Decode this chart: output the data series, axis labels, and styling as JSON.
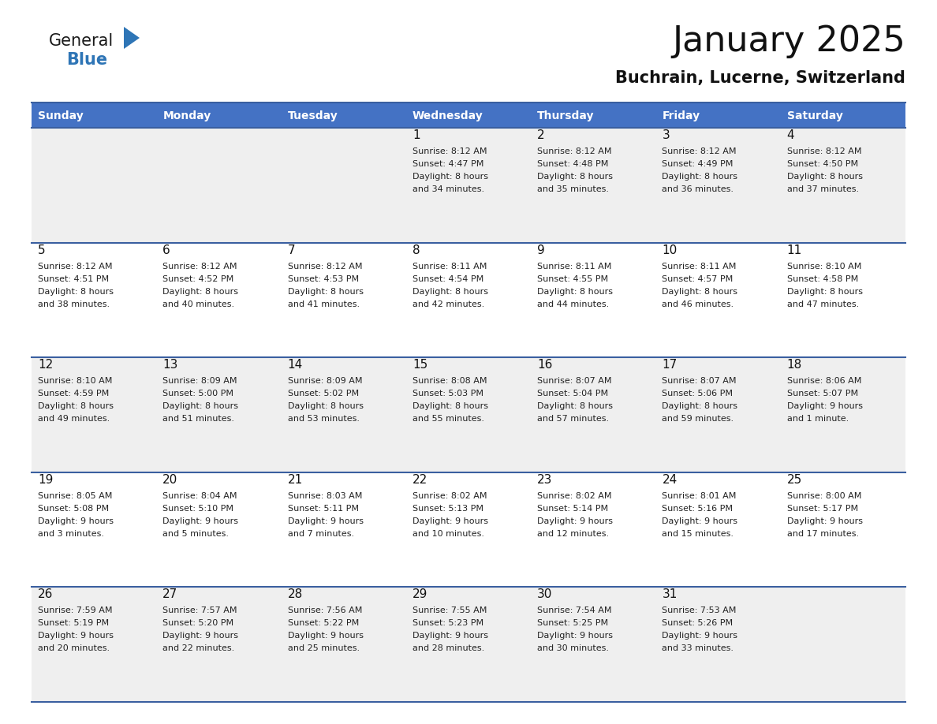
{
  "title": "January 2025",
  "subtitle": "Buchrain, Lucerne, Switzerland",
  "header_bg": "#4472C4",
  "header_text": "#FFFFFF",
  "cell_bg_odd": "#EFEFEF",
  "cell_bg_even": "#FFFFFF",
  "row_line_color": "#3A5FA0",
  "days_of_week": [
    "Sunday",
    "Monday",
    "Tuesday",
    "Wednesday",
    "Thursday",
    "Friday",
    "Saturday"
  ],
  "calendar": [
    [
      {
        "day": "",
        "sunrise": "",
        "sunset": "",
        "daylight": ""
      },
      {
        "day": "",
        "sunrise": "",
        "sunset": "",
        "daylight": ""
      },
      {
        "day": "",
        "sunrise": "",
        "sunset": "",
        "daylight": ""
      },
      {
        "day": "1",
        "sunrise": "8:12 AM",
        "sunset": "4:47 PM",
        "daylight": "8 hours and 34 minutes."
      },
      {
        "day": "2",
        "sunrise": "8:12 AM",
        "sunset": "4:48 PM",
        "daylight": "8 hours and 35 minutes."
      },
      {
        "day": "3",
        "sunrise": "8:12 AM",
        "sunset": "4:49 PM",
        "daylight": "8 hours and 36 minutes."
      },
      {
        "day": "4",
        "sunrise": "8:12 AM",
        "sunset": "4:50 PM",
        "daylight": "8 hours and 37 minutes."
      }
    ],
    [
      {
        "day": "5",
        "sunrise": "8:12 AM",
        "sunset": "4:51 PM",
        "daylight": "8 hours and 38 minutes."
      },
      {
        "day": "6",
        "sunrise": "8:12 AM",
        "sunset": "4:52 PM",
        "daylight": "8 hours and 40 minutes."
      },
      {
        "day": "7",
        "sunrise": "8:12 AM",
        "sunset": "4:53 PM",
        "daylight": "8 hours and 41 minutes."
      },
      {
        "day": "8",
        "sunrise": "8:11 AM",
        "sunset": "4:54 PM",
        "daylight": "8 hours and 42 minutes."
      },
      {
        "day": "9",
        "sunrise": "8:11 AM",
        "sunset": "4:55 PM",
        "daylight": "8 hours and 44 minutes."
      },
      {
        "day": "10",
        "sunrise": "8:11 AM",
        "sunset": "4:57 PM",
        "daylight": "8 hours and 46 minutes."
      },
      {
        "day": "11",
        "sunrise": "8:10 AM",
        "sunset": "4:58 PM",
        "daylight": "8 hours and 47 minutes."
      }
    ],
    [
      {
        "day": "12",
        "sunrise": "8:10 AM",
        "sunset": "4:59 PM",
        "daylight": "8 hours and 49 minutes."
      },
      {
        "day": "13",
        "sunrise": "8:09 AM",
        "sunset": "5:00 PM",
        "daylight": "8 hours and 51 minutes."
      },
      {
        "day": "14",
        "sunrise": "8:09 AM",
        "sunset": "5:02 PM",
        "daylight": "8 hours and 53 minutes."
      },
      {
        "day": "15",
        "sunrise": "8:08 AM",
        "sunset": "5:03 PM",
        "daylight": "8 hours and 55 minutes."
      },
      {
        "day": "16",
        "sunrise": "8:07 AM",
        "sunset": "5:04 PM",
        "daylight": "8 hours and 57 minutes."
      },
      {
        "day": "17",
        "sunrise": "8:07 AM",
        "sunset": "5:06 PM",
        "daylight": "8 hours and 59 minutes."
      },
      {
        "day": "18",
        "sunrise": "8:06 AM",
        "sunset": "5:07 PM",
        "daylight": "9 hours and 1 minute."
      }
    ],
    [
      {
        "day": "19",
        "sunrise": "8:05 AM",
        "sunset": "5:08 PM",
        "daylight": "9 hours and 3 minutes."
      },
      {
        "day": "20",
        "sunrise": "8:04 AM",
        "sunset": "5:10 PM",
        "daylight": "9 hours and 5 minutes."
      },
      {
        "day": "21",
        "sunrise": "8:03 AM",
        "sunset": "5:11 PM",
        "daylight": "9 hours and 7 minutes."
      },
      {
        "day": "22",
        "sunrise": "8:02 AM",
        "sunset": "5:13 PM",
        "daylight": "9 hours and 10 minutes."
      },
      {
        "day": "23",
        "sunrise": "8:02 AM",
        "sunset": "5:14 PM",
        "daylight": "9 hours and 12 minutes."
      },
      {
        "day": "24",
        "sunrise": "8:01 AM",
        "sunset": "5:16 PM",
        "daylight": "9 hours and 15 minutes."
      },
      {
        "day": "25",
        "sunrise": "8:00 AM",
        "sunset": "5:17 PM",
        "daylight": "9 hours and 17 minutes."
      }
    ],
    [
      {
        "day": "26",
        "sunrise": "7:59 AM",
        "sunset": "5:19 PM",
        "daylight": "9 hours and 20 minutes."
      },
      {
        "day": "27",
        "sunrise": "7:57 AM",
        "sunset": "5:20 PM",
        "daylight": "9 hours and 22 minutes."
      },
      {
        "day": "28",
        "sunrise": "7:56 AM",
        "sunset": "5:22 PM",
        "daylight": "9 hours and 25 minutes."
      },
      {
        "day": "29",
        "sunrise": "7:55 AM",
        "sunset": "5:23 PM",
        "daylight": "9 hours and 28 minutes."
      },
      {
        "day": "30",
        "sunrise": "7:54 AM",
        "sunset": "5:25 PM",
        "daylight": "9 hours and 30 minutes."
      },
      {
        "day": "31",
        "sunrise": "7:53 AM",
        "sunset": "5:26 PM",
        "daylight": "9 hours and 33 minutes."
      },
      {
        "day": "",
        "sunrise": "",
        "sunset": "",
        "daylight": ""
      }
    ]
  ],
  "logo_color_general": "#1a1a1a",
  "logo_color_blue": "#2E75B6",
  "logo_triangle_color": "#2E75B6",
  "title_fontsize": 32,
  "subtitle_fontsize": 15,
  "header_fontsize": 10,
  "day_number_fontsize": 11,
  "cell_text_fontsize": 8
}
